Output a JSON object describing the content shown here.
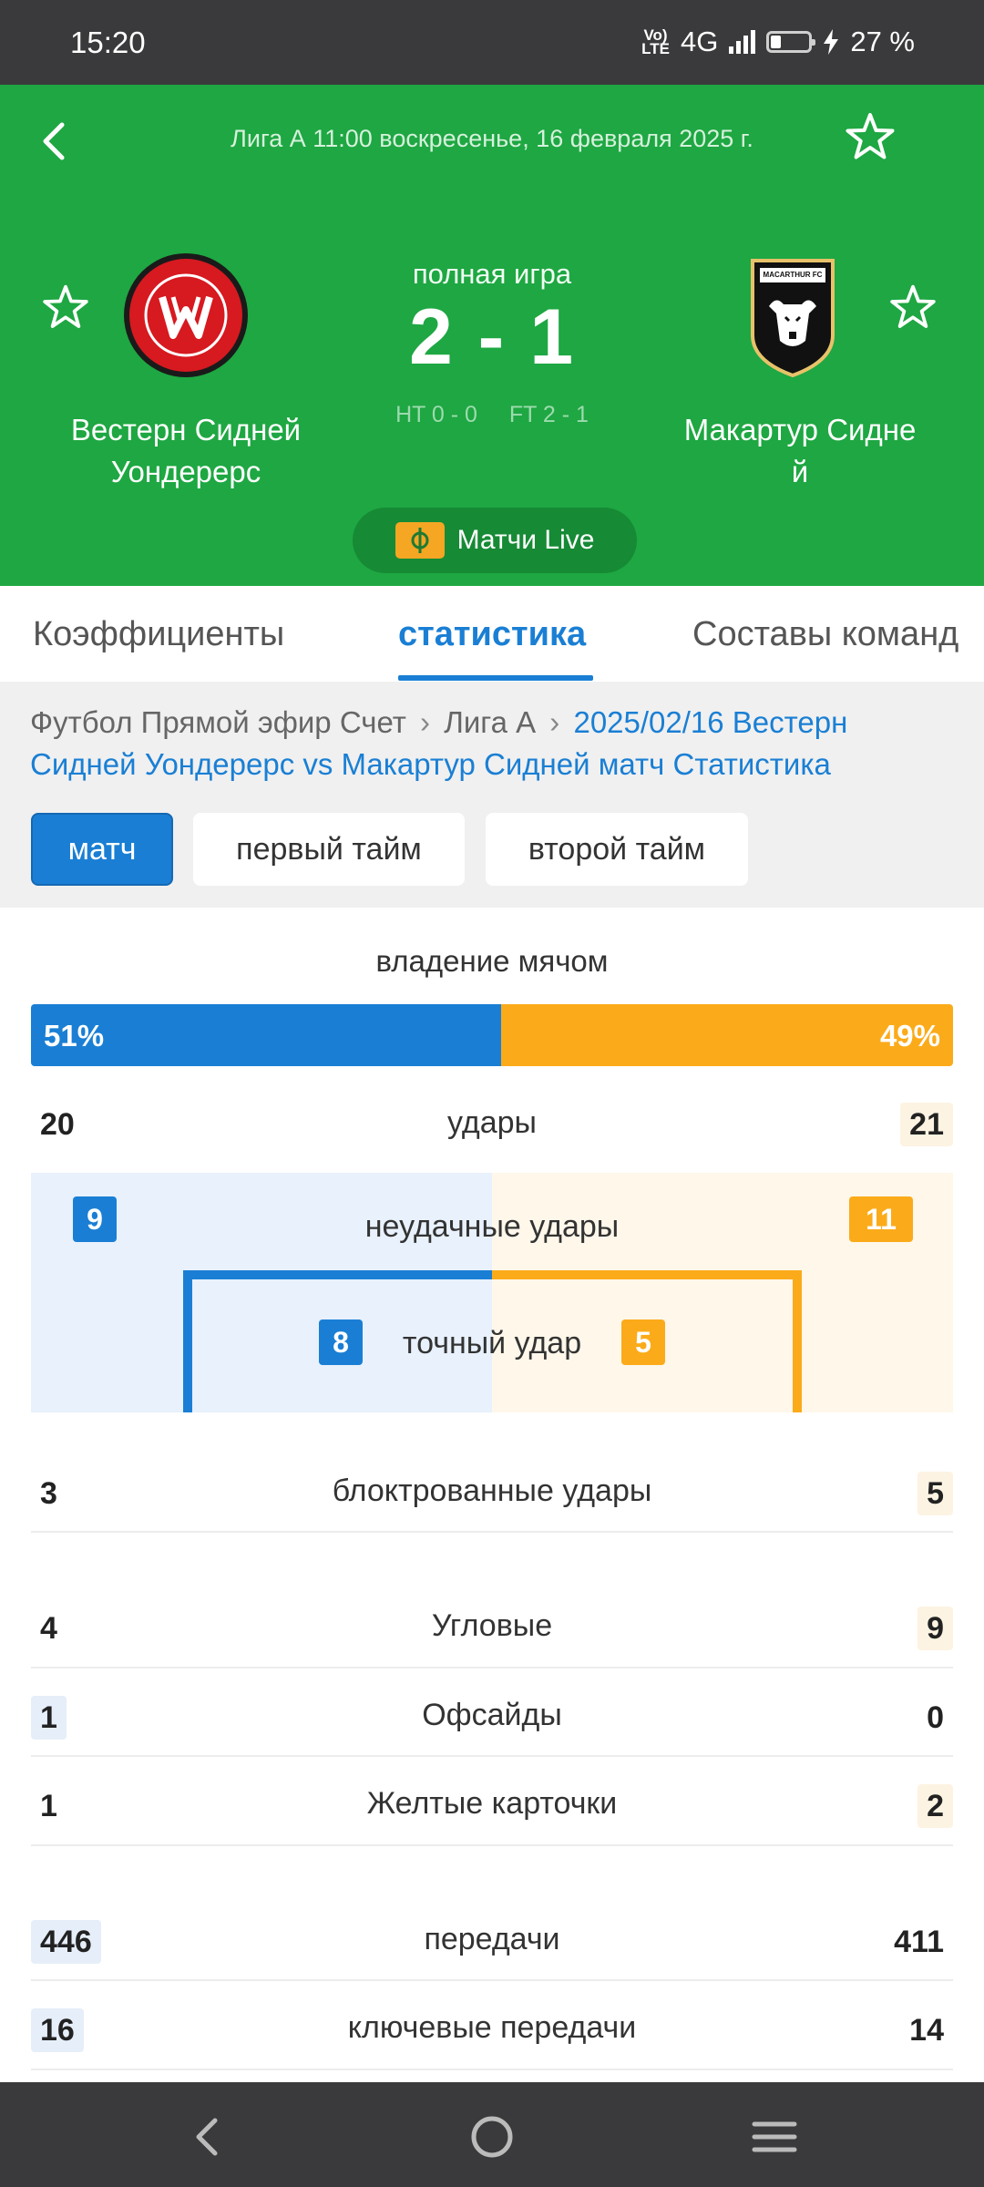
{
  "status_bar": {
    "time": "15:20",
    "network_lte": "Vo) LTE",
    "network": "4G",
    "battery": "27 %",
    "icons": [
      "signal-icon",
      "battery-icon",
      "charging-icon"
    ]
  },
  "header": {
    "league_line": "Лига А 11:00 воскресенье, 16 февраля 2025 г.",
    "game_label": "полная игра",
    "score": "2 - 1",
    "ht": "HT 0 - 0",
    "ft": "FT 2 - 1",
    "home_team": "Вестерн Сидней Уондерерс",
    "away_team_line1": "Макартур Сидне",
    "away_team_line2": "й",
    "away_logo_text": "MACARTHUR FC",
    "live_button": "Матчи Live",
    "colors": {
      "header_bg": "#1ea742",
      "live_pill": "#168a35"
    }
  },
  "tabs": [
    {
      "label": "Коэффициенты"
    },
    {
      "label": "статистика",
      "active": true
    },
    {
      "label": "Составы команд"
    }
  ],
  "breadcrumb": {
    "item1": "Футбол Прямой эфир Счет",
    "item2": "Лига А",
    "current": "2025/02/16 Вестерн Сидней Уондерерс vs Макартур Сидней матч Статистика"
  },
  "periods": [
    {
      "label": "матч",
      "active": true
    },
    {
      "label": "первый тайм"
    },
    {
      "label": "второй тайм"
    }
  ],
  "possession": {
    "title": "владение мячом",
    "home_label": "51%",
    "away_label": "49%",
    "home_fraction": 0.51
  },
  "shots": {
    "label": "удары",
    "home": "20",
    "away": "21",
    "off_label": "неудачные удары",
    "off_home": "9",
    "off_away": "11",
    "on_label": "точный удар",
    "on_home": "8",
    "on_away": "5"
  },
  "stats": [
    {
      "label": "блоктрованные удары",
      "home": "3",
      "away": "5"
    },
    {
      "label": "Угловые",
      "home": "4",
      "away": "9"
    },
    {
      "label": "Офсайды",
      "home": "1",
      "away": "0"
    },
    {
      "label": "Желтые карточки",
      "home": "1",
      "away": "2"
    },
    {
      "label": "передачи",
      "home": "446",
      "away": "411"
    },
    {
      "label": "ключевые передачи",
      "home": "16",
      "away": "14"
    }
  ],
  "colors": {
    "home": "#1a7fd4",
    "away": "#fbab1a"
  }
}
